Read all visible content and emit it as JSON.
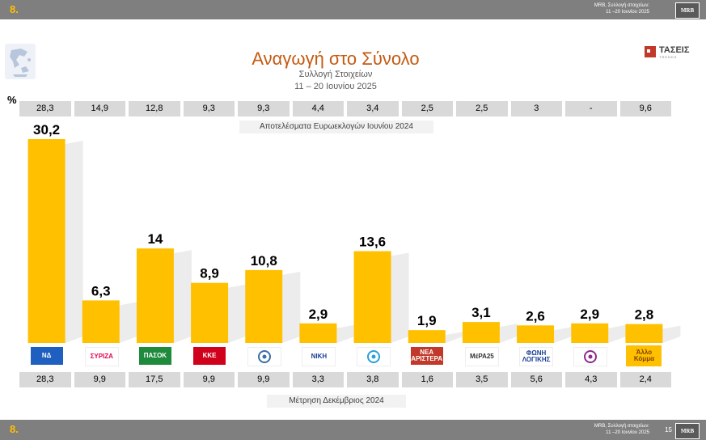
{
  "header": {
    "slide_number": "8.",
    "source_line1": "MRB, Συλλογή στοιχείων:",
    "source_line2": "11 –20 Ιουνίου 2025",
    "brand": "MRB"
  },
  "footer": {
    "slide_number": "8.",
    "source_line1": "MRB, Συλλογή στοιχείων:",
    "source_line2": "11 –20 Ιουνίου 2025",
    "page_number": "15",
    "brand": "MRB"
  },
  "tase_logo": {
    "name": "ΤΑΣΕΙΣ",
    "sub": "TRENDS"
  },
  "chart_data": {
    "type": "bar",
    "title": "Αναγωγή στο Σύνολο",
    "subtitle": "Συλλογή Στοιχείων",
    "date_range": "11 – 20 Ιουνίου 2025",
    "ylabel": "%",
    "categories": [
      "ΝΔ",
      "ΣΥΡΙΖΑ",
      "ΠΑΣΟΚ",
      "ΚΚΕ",
      "Ελληνική Λύση",
      "ΝΙΚΗ",
      "Πλεύση Ελευθερίας",
      "Νέα Αριστερά",
      "ΜέΡΑ25",
      "Φωνή Λογικής",
      "Δημοκράτες",
      "Άλλο Κόμμα"
    ],
    "values": [
      30.2,
      6.3,
      14,
      8.9,
      10.8,
      2.9,
      13.6,
      1.9,
      3.1,
      2.6,
      2.9,
      2.8
    ],
    "value_labels": [
      "30,2",
      "6,3",
      "14",
      "8,9",
      "10,8",
      "2,9",
      "13,6",
      "1,9",
      "3,1",
      "2,6",
      "2,9",
      "2,8"
    ],
    "ylim": [
      0,
      32
    ],
    "bar_color": "#ffc000",
    "euro_elections_caption": "Αποτελέσματα Ευρωεκλογών Ιουνίου 2024",
    "euro_elections_values": [
      "28,3",
      "14,9",
      "12,8",
      "9,3",
      "9,3",
      "4,4",
      "3,4",
      "2,5",
      "2,5",
      "3",
      "-",
      "9,6"
    ],
    "december_caption": "Μέτρηση Δεκέμβριος 2024",
    "december_values": [
      "28,3",
      "9,9",
      "17,5",
      "9,9",
      "9,9",
      "3,3",
      "3,8",
      "1,6",
      "3,5",
      "5,6",
      "4,3",
      "2,4"
    ]
  },
  "party_logos": [
    {
      "icon": "nd-logo",
      "text": "ΝΔ",
      "color": "#1f5fbf",
      "bg": "#1f5fbf",
      "fg": "#ffffff"
    },
    {
      "icon": "syriza-logo",
      "text": "ΣΥΡΙΖΑ",
      "color": "#e5004f",
      "bg": "#ffffff",
      "fg": "#e5004f"
    },
    {
      "icon": "pasok-logo",
      "text": "ΠΑΣΟΚ",
      "color": "#1e8a3c",
      "bg": "#1e8a3c",
      "fg": "#ffffff"
    },
    {
      "icon": "kke-logo",
      "text": "ΚΚΕ",
      "color": "#d0021b",
      "bg": "#d0021b",
      "fg": "#ffffff"
    },
    {
      "icon": "elliniki-lysi-logo",
      "text": "",
      "color": "#3a6ea5",
      "bg": "#ffffff",
      "fg": "#3a6ea5"
    },
    {
      "icon": "niki-logo",
      "text": "ΝΙΚΗ",
      "color": "#1c3f94",
      "bg": "#ffffff",
      "fg": "#1c3f94"
    },
    {
      "icon": "plefsi-logo",
      "text": "",
      "color": "#2b9fd9",
      "bg": "#ffffff",
      "fg": "#2b9fd9"
    },
    {
      "icon": "nea-aristera-logo",
      "text": "ΝΕΑ ΑΡΙΣΤΕΡΑ",
      "color": "#c0392b",
      "bg": "#c0392b",
      "fg": "#ffffff"
    },
    {
      "icon": "mera25-logo",
      "text": "ΜέΡΑ25",
      "color": "#e24a2b",
      "bg": "#ffffff",
      "fg": "#333333"
    },
    {
      "icon": "foni-logikis-logo",
      "text": "ΦΩΝΗ ΛΟΓΙΚΗΣ",
      "color": "#1c3f94",
      "bg": "#ffffff",
      "fg": "#1c3f94"
    },
    {
      "icon": "dimokrates-logo",
      "text": "",
      "color": "#8e2a8e",
      "bg": "#ffffff",
      "fg": "#8e2a8e"
    },
    {
      "icon": "allo-komma-box",
      "text": "Άλλο Κόμμα",
      "color": "#ffc000",
      "bg": "#ffc000",
      "fg": "#7f3f00"
    }
  ]
}
